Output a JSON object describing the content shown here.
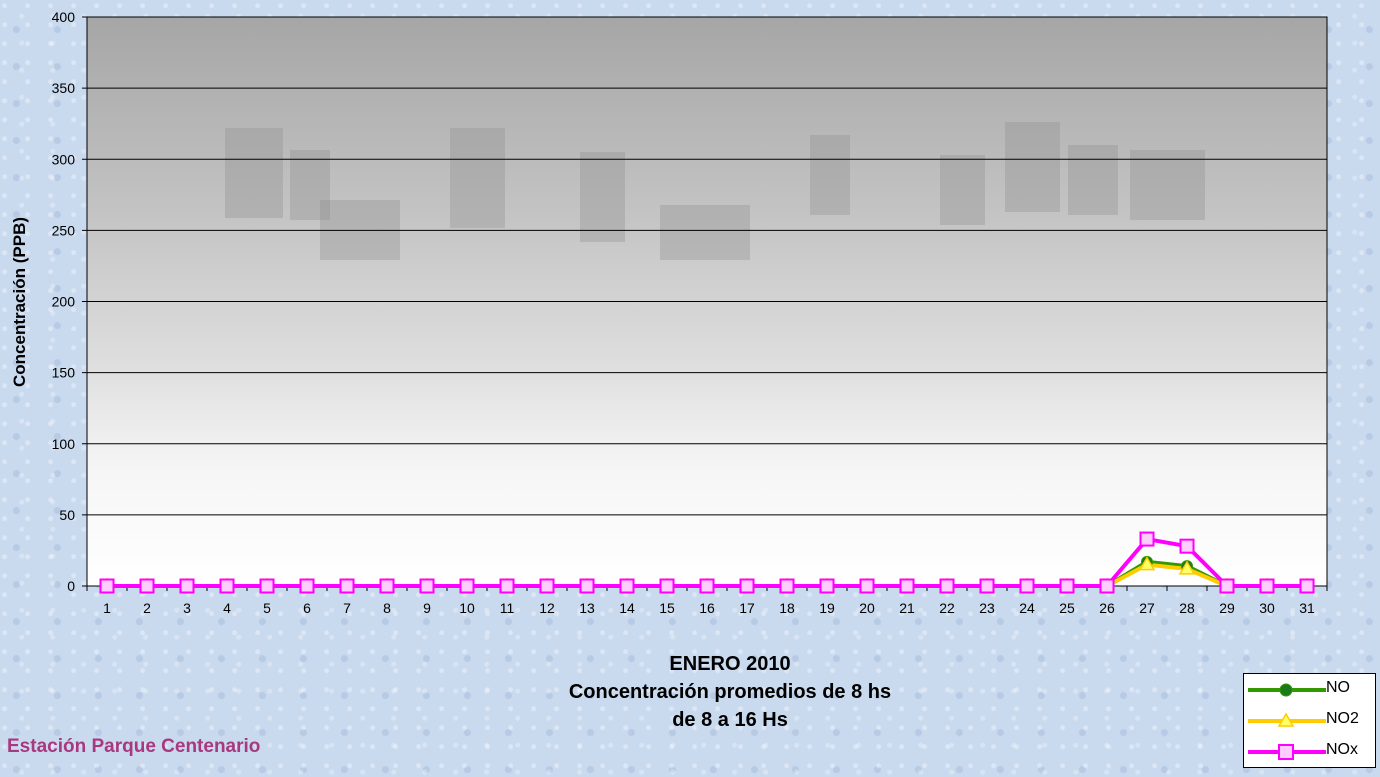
{
  "chart_data": {
    "type": "line",
    "title": "ENERO 2010",
    "subtitle_lines": [
      "Concentración promedios de 8 hs",
      "de 8 a 16 Hs"
    ],
    "ylabel": "Concentración (PPB)",
    "xlabel": "",
    "ylim": [
      0,
      400
    ],
    "yticks": [
      0,
      50,
      100,
      150,
      200,
      250,
      300,
      350,
      400
    ],
    "grid": true,
    "legend_position": "bottom-right",
    "categories": [
      "1",
      "2",
      "3",
      "4",
      "5",
      "6",
      "7",
      "8",
      "9",
      "10",
      "11",
      "12",
      "13",
      "14",
      "15",
      "16",
      "17",
      "18",
      "19",
      "20",
      "21",
      "22",
      "23",
      "24",
      "25",
      "26",
      "27",
      "28",
      "29",
      "30",
      "31"
    ],
    "series": [
      {
        "name": "NO",
        "color": "#339900",
        "marker": "circle-green",
        "values": [
          0,
          0,
          0,
          0,
          0,
          0,
          0,
          0,
          0,
          0,
          0,
          0,
          0,
          0,
          0,
          0,
          0,
          0,
          0,
          0,
          0,
          0,
          0,
          0,
          0,
          0,
          17,
          14,
          0,
          0,
          0
        ]
      },
      {
        "name": "NO2",
        "color": "#ffcc00",
        "marker": "triangle-yellow",
        "values": [
          0,
          0,
          0,
          0,
          0,
          0,
          0,
          0,
          0,
          0,
          0,
          0,
          0,
          0,
          0,
          0,
          0,
          0,
          0,
          0,
          0,
          0,
          0,
          0,
          0,
          0,
          15,
          12,
          0,
          0,
          0
        ]
      },
      {
        "name": "NOx",
        "color": "#ff00ff",
        "marker": "square-pink",
        "values": [
          0,
          0,
          0,
          0,
          0,
          0,
          0,
          0,
          0,
          0,
          0,
          0,
          0,
          0,
          0,
          0,
          0,
          0,
          0,
          0,
          0,
          0,
          0,
          0,
          0,
          0,
          33,
          28,
          0,
          0,
          0
        ]
      }
    ]
  },
  "station_label": "Estación Parque Centenario"
}
